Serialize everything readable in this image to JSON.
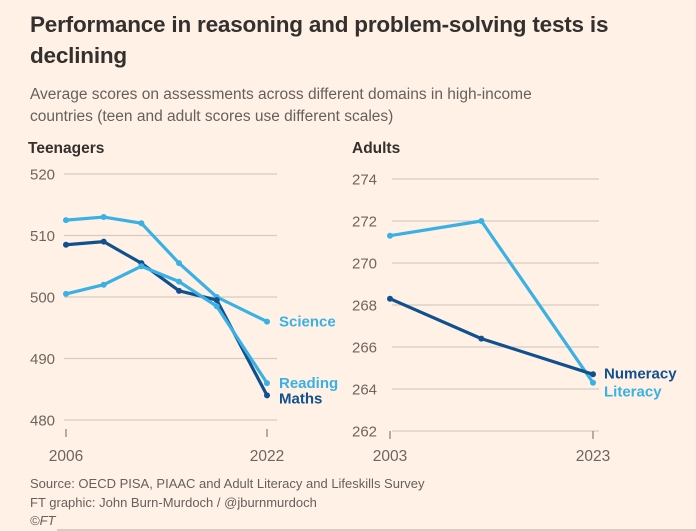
{
  "header": {
    "title_lines": [
      "Performance in reasoning and problem-solving tests is",
      "declining"
    ],
    "subtitle_lines": [
      "Average scores on assessments across different domains in high-income",
      "countries (teen and adult scores use different scales)"
    ]
  },
  "footer": {
    "source": "Source: OECD PISA, PIAAC and Adult Literacy and Lifeskills Survey",
    "credit": "FT graphic: John Burn-Murdoch / @jburnmurdoch",
    "copyright": "©FT"
  },
  "colors": {
    "background": "#FFF1E5",
    "title": "#33302E",
    "subtitle": "#66605C",
    "tick_text": "#6E665E",
    "tick_mark": "#8F867C",
    "grid": "#D6CBBF",
    "cyan": "#3AB1E4",
    "navy": "#11508F"
  },
  "chart_data": [
    {
      "type": "line",
      "title": "Teenagers",
      "x": [
        2006,
        2009,
        2012,
        2015,
        2018,
        2022
      ],
      "series": [
        {
          "name": "Science",
          "color": "cyan",
          "values": [
            512.5,
            513,
            512,
            505.5,
            500,
            496
          ]
        },
        {
          "name": "Maths",
          "color": "navy",
          "values": [
            508.5,
            509,
            505.5,
            501,
            499.5,
            484
          ]
        },
        {
          "name": "Reading",
          "color": "cyan",
          "values": [
            500.5,
            502,
            505,
            502.5,
            498.5,
            486
          ]
        }
      ],
      "ylim": [
        480,
        520
      ],
      "yticks": [
        480,
        490,
        500,
        510,
        520
      ],
      "xticks": [
        2006,
        2022
      ],
      "xtick_labels": [
        "2006",
        "2022"
      ],
      "grid": true,
      "legend_position": "labels-at-line-end"
    },
    {
      "type": "line",
      "title": "Adults",
      "x": [
        2003,
        2012,
        2023
      ],
      "series": [
        {
          "name": "Literacy",
          "color": "cyan",
          "values": [
            271.3,
            272,
            264.3
          ]
        },
        {
          "name": "Numeracy",
          "color": "navy",
          "values": [
            268.3,
            266.4,
            264.7
          ]
        }
      ],
      "ylim": [
        262,
        274
      ],
      "yticks": [
        262,
        264,
        266,
        268,
        270,
        272,
        274
      ],
      "xticks": [
        2003,
        2023
      ],
      "xtick_labels": [
        "2003",
        "2023"
      ],
      "grid": true,
      "legend_position": "labels-at-line-end"
    }
  ]
}
